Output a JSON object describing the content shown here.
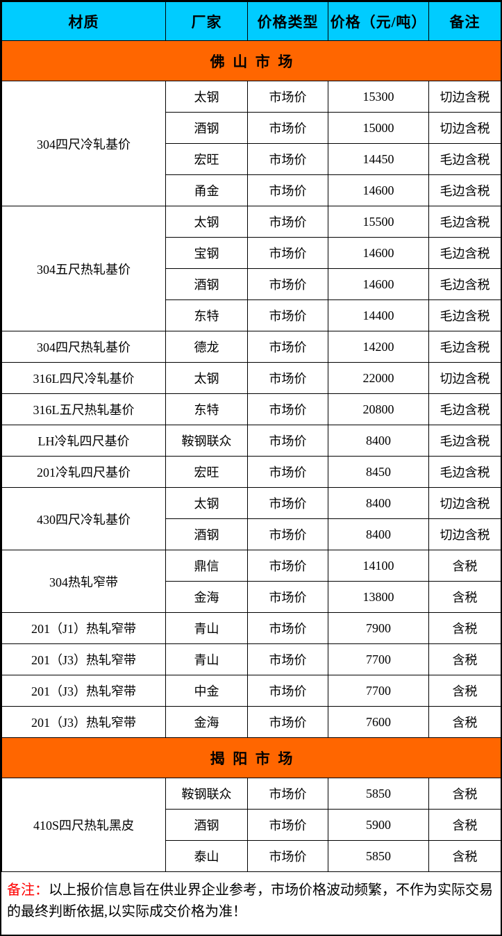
{
  "colors": {
    "header_bg": "#00CCFF",
    "section_bg": "#FF6600",
    "border": "#000000",
    "note_label_red": "#FF0000"
  },
  "header": {
    "columns": [
      "材质",
      "厂家",
      "价格类型",
      "价格（元/吨）",
      "备注"
    ]
  },
  "sections": [
    {
      "title": "佛山市场",
      "groups": [
        {
          "material": "304四尺冷轧基价",
          "rows": [
            {
              "vendor": "太钢",
              "price_type": "市场价",
              "price": "15300",
              "remark": "切边含税"
            },
            {
              "vendor": "酒钢",
              "price_type": "市场价",
              "price": "15000",
              "remark": "切边含税"
            },
            {
              "vendor": "宏旺",
              "price_type": "市场价",
              "price": "14450",
              "remark": "毛边含税"
            },
            {
              "vendor": "甬金",
              "price_type": "市场价",
              "price": "14600",
              "remark": "毛边含税"
            }
          ]
        },
        {
          "material": "304五尺热轧基价",
          "rows": [
            {
              "vendor": "太钢",
              "price_type": "市场价",
              "price": "15500",
              "remark": "毛边含税"
            },
            {
              "vendor": "宝钢",
              "price_type": "市场价",
              "price": "14600",
              "remark": "毛边含税"
            },
            {
              "vendor": "酒钢",
              "price_type": "市场价",
              "price": "14600",
              "remark": "毛边含税"
            },
            {
              "vendor": "东特",
              "price_type": "市场价",
              "price": "14400",
              "remark": "毛边含税"
            }
          ]
        },
        {
          "material": "304四尺热轧基价",
          "rows": [
            {
              "vendor": "德龙",
              "price_type": "市场价",
              "price": "14200",
              "remark": "毛边含税"
            }
          ]
        },
        {
          "material": "316L四尺冷轧基价",
          "rows": [
            {
              "vendor": "太钢",
              "price_type": "市场价",
              "price": "22000",
              "remark": "切边含税"
            }
          ]
        },
        {
          "material": "316L五尺热轧基价",
          "rows": [
            {
              "vendor": "东特",
              "price_type": "市场价",
              "price": "20800",
              "remark": "毛边含税"
            }
          ]
        },
        {
          "material": "LH冷轧四尺基价",
          "rows": [
            {
              "vendor": "鞍钢联众",
              "price_type": "市场价",
              "price": "8400",
              "remark": "毛边含税"
            }
          ]
        },
        {
          "material": "201冷轧四尺基价",
          "rows": [
            {
              "vendor": "宏旺",
              "price_type": "市场价",
              "price": "8450",
              "remark": "毛边含税"
            }
          ]
        },
        {
          "material": "430四尺冷轧基价",
          "rows": [
            {
              "vendor": "太钢",
              "price_type": "市场价",
              "price": "8400",
              "remark": "切边含税"
            },
            {
              "vendor": "酒钢",
              "price_type": "市场价",
              "price": "8400",
              "remark": "切边含税"
            }
          ]
        },
        {
          "material": "304热轧窄带",
          "rows": [
            {
              "vendor": "鼎信",
              "price_type": "市场价",
              "price": "14100",
              "remark": "含税"
            },
            {
              "vendor": "金海",
              "price_type": "市场价",
              "price": "13800",
              "remark": "含税"
            }
          ]
        },
        {
          "material": "201（J1）热轧窄带",
          "rows": [
            {
              "vendor": "青山",
              "price_type": "市场价",
              "price": "7900",
              "remark": "含税"
            }
          ]
        },
        {
          "material": "201（J3）热轧窄带",
          "rows": [
            {
              "vendor": "青山",
              "price_type": "市场价",
              "price": "7700",
              "remark": "含税"
            }
          ]
        },
        {
          "material": "201（J3）热轧窄带",
          "rows": [
            {
              "vendor": "中金",
              "price_type": "市场价",
              "price": "7700",
              "remark": "含税"
            }
          ]
        },
        {
          "material": "201（J3）热轧窄带",
          "rows": [
            {
              "vendor": "金海",
              "price_type": "市场价",
              "price": "7600",
              "remark": "含税"
            }
          ]
        }
      ]
    },
    {
      "title": "揭阳市场",
      "groups": [
        {
          "material": "410S四尺热轧黑皮",
          "rows": [
            {
              "vendor": "鞍钢联众",
              "price_type": "市场价",
              "price": "5850",
              "remark": "含税"
            },
            {
              "vendor": "酒钢",
              "price_type": "市场价",
              "price": "5900",
              "remark": "含税"
            },
            {
              "vendor": "泰山",
              "price_type": "市场价",
              "price": "5850",
              "remark": "含税"
            }
          ]
        }
      ]
    }
  ],
  "footer": {
    "label": "备注：",
    "text": "以上报价信息旨在供业界企业参考，市场价格波动频繁，不作为实际交易的最终判断依据,以实际成交价格为准！"
  }
}
